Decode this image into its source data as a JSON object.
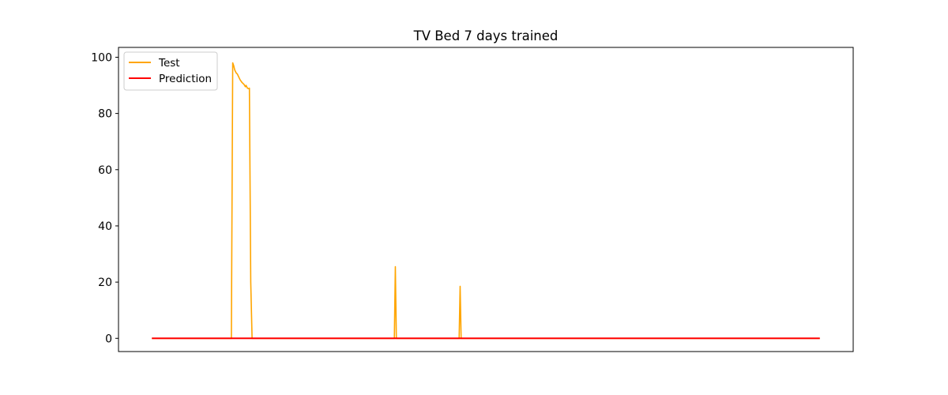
{
  "chart_data": {
    "type": "line",
    "title": "TV Bed 7 days trained",
    "xlabel": "",
    "ylabel": "",
    "xlim": [
      -5,
      105
    ],
    "ylim": [
      -4.7,
      103.5
    ],
    "yticks": [
      0,
      20,
      40,
      60,
      80,
      100
    ],
    "xticks_visible": false,
    "grid": false,
    "legend": {
      "placement": "top-left",
      "entries": [
        "Test",
        "Prediction"
      ]
    },
    "series": [
      {
        "name": "Test",
        "color": "#ffa500",
        "x": [
          0,
          11.9,
          12.1,
          12.25,
          12.4,
          12.6,
          12.8,
          13.0,
          13.2,
          13.5,
          13.8,
          14.0,
          14.1,
          14.3,
          14.5,
          14.6,
          14.8,
          15.0,
          36.3,
          36.45,
          36.6,
          46.0,
          46.15,
          46.3,
          100
        ],
        "y": [
          0,
          0,
          98,
          97,
          95.5,
          94.5,
          94,
          93,
          92,
          91,
          90.3,
          89.5,
          90,
          89,
          88.8,
          89,
          20,
          0,
          0,
          25.5,
          0,
          0,
          18.5,
          0,
          0
        ]
      },
      {
        "name": "Prediction",
        "color": "#ff0000",
        "x": [
          0,
          100
        ],
        "y": [
          0,
          0
        ]
      }
    ]
  }
}
